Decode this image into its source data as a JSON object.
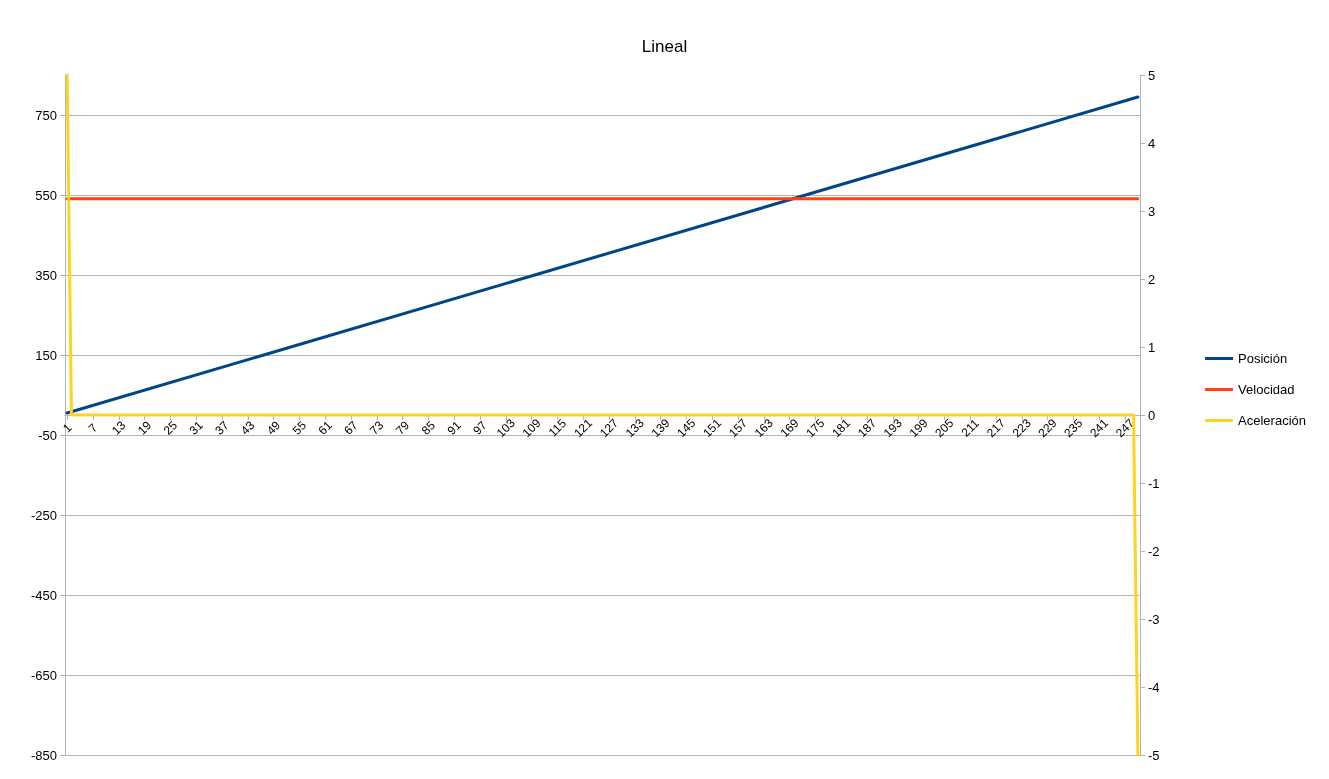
{
  "chart_data": {
    "type": "line",
    "title": "Lineal",
    "xlim": [
      0.5,
      250.5
    ],
    "xticks": [
      1,
      7,
      13,
      19,
      25,
      31,
      37,
      43,
      49,
      55,
      61,
      67,
      73,
      79,
      85,
      91,
      97,
      103,
      109,
      115,
      121,
      127,
      133,
      139,
      145,
      151,
      157,
      163,
      169,
      175,
      181,
      187,
      193,
      199,
      205,
      211,
      217,
      223,
      229,
      235,
      241,
      247
    ],
    "ylim": [
      -850,
      850
    ],
    "yticks": [
      -850,
      -650,
      -450,
      -250,
      -50,
      150,
      350,
      550,
      750
    ],
    "y2lim": [
      -5,
      5
    ],
    "y2ticks": [
      -5,
      -4,
      -3,
      -2,
      -1,
      0,
      1,
      2,
      3,
      4,
      5
    ],
    "series": [
      {
        "name": "Posición",
        "color": "#004586",
        "x": [
          1,
          250
        ],
        "values": [
          5,
          795
        ]
      },
      {
        "name": "Velocidad",
        "color": "#ff420e",
        "axis": "y2",
        "x": [
          1,
          250
        ],
        "values": [
          3.18,
          3.18
        ]
      },
      {
        "name": "Aceleración",
        "color": "#ffd320",
        "axis": "y2",
        "x": [
          1,
          2,
          249,
          250
        ],
        "values": [
          5,
          0,
          0,
          -5
        ]
      }
    ],
    "grid": "y",
    "legend": "right",
    "marker": "none",
    "line_style": "solid"
  }
}
